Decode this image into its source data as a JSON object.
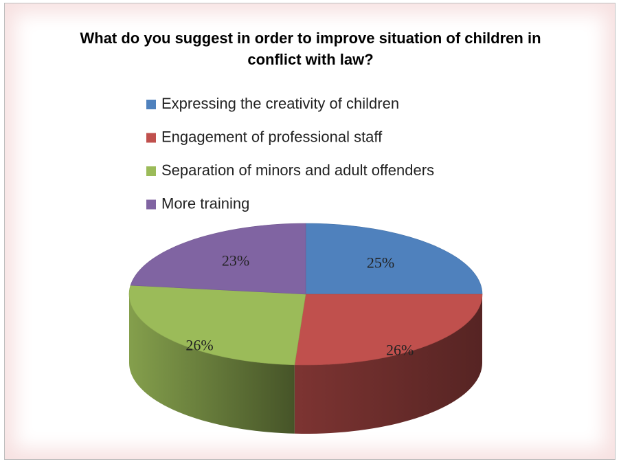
{
  "chart_data": {
    "type": "pie3d",
    "title": "What do you suggest in order to improve situation of children in conflict with law?",
    "categories": [
      "Expressing the creativity of children",
      "Engagement of professional staff",
      "Separation of minors and adult offenders",
      "More training"
    ],
    "values": [
      25,
      26,
      26,
      23
    ],
    "value_labels": [
      "25%",
      "26%",
      "26%",
      "23%"
    ],
    "colors": [
      "#4f81bd",
      "#c0504d",
      "#9bbb59",
      "#8064a2"
    ],
    "legend": "top"
  }
}
